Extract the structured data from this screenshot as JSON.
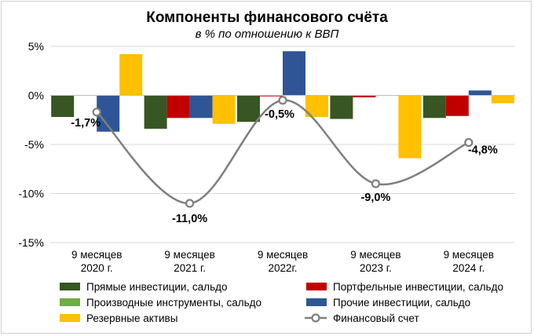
{
  "chart_data": {
    "type": "bar",
    "title": "Компоненты финансового счёта",
    "subtitle": "в % по отношению к ВВП",
    "categories": [
      [
        "9 месяцев",
        "2020 г."
      ],
      [
        "9 месяцев",
        "2021 г."
      ],
      [
        "9 месяцев",
        "2022г."
      ],
      [
        "9 месяцев",
        "2023 г."
      ],
      [
        "9 месяцев",
        "2024 г."
      ]
    ],
    "ylim": [
      -15,
      5
    ],
    "yticks": [
      5,
      0,
      -5,
      -10,
      -15
    ],
    "ytick_labels": [
      "5%",
      "0%",
      "-5%",
      "-10%",
      "-15%"
    ],
    "grid": true,
    "series": [
      {
        "name": "Прямые инвестиции, сальдо",
        "color": "#375623",
        "values": [
          -2.2,
          -3.4,
          -2.7,
          -2.4,
          -2.3
        ]
      },
      {
        "name": "Портфельные инвестиции, сальдо",
        "color": "#c00000",
        "values": [
          0.0,
          -2.3,
          -0.1,
          -0.2,
          -2.1
        ]
      },
      {
        "name": "Производные инструменты, сальдо",
        "color": "#70ad47",
        "values": [
          0.0,
          0.0,
          0.0,
          0.0,
          0.0
        ]
      },
      {
        "name": "Прочие инвестиции, сальдо",
        "color": "#2f5597",
        "values": [
          -3.7,
          -2.3,
          4.5,
          0.0,
          0.5
        ]
      },
      {
        "name": "Резервные активы",
        "color": "#ffc000",
        "values": [
          4.2,
          -2.9,
          -2.2,
          -6.4,
          -0.8
        ]
      }
    ],
    "line_series": {
      "name": "Финансовый счет",
      "color": "#7f7f7f",
      "values": [
        -1.7,
        -11.0,
        -0.5,
        -9.0,
        -4.8
      ],
      "labels": [
        "-1,7%",
        "-11,0%",
        "-0,5%",
        "-9,0%",
        "-4,8%"
      ]
    },
    "legend_position": "bottom"
  }
}
